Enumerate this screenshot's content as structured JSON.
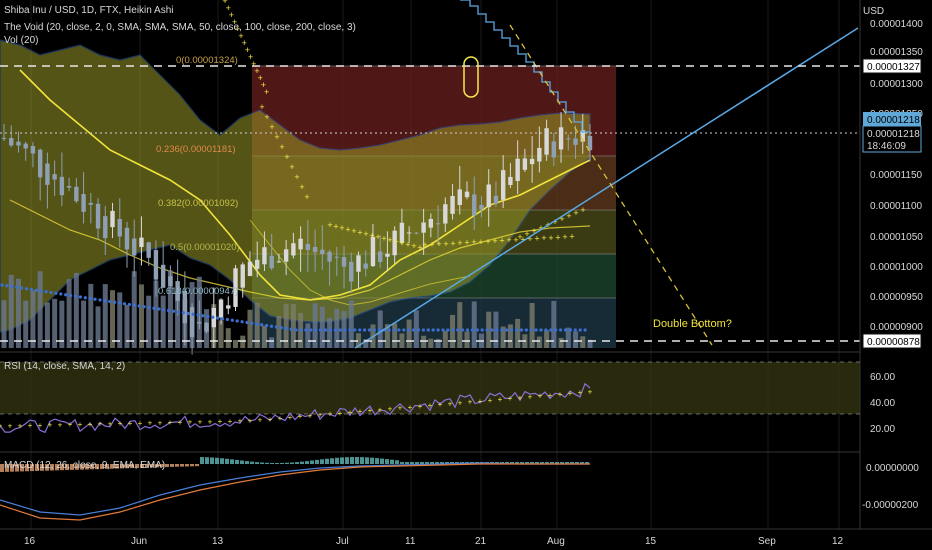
{
  "header": {
    "symbol_line": "Shiba Inu / USD, 1D, FTX, Heikin Ashi",
    "indicator_line": "The Void (20, close, 2, 0, SMA, SMA, SMA, 50, close, 100, close, 200, close, 3)",
    "volume_line": "Vol (20)"
  },
  "colors": {
    "background": "#000000",
    "candle_up": "#d8d8d8",
    "candle_down": "#8fa0b5",
    "band_fill": "#9a9a28",
    "band_edge": "#2f5fa8",
    "sma_line": "#f2e33a",
    "dotted_sar": "#f6e84a",
    "trendline": "#5aa9e6",
    "dashed_down": "#d6c13a",
    "fib_red": "#6b1f1f",
    "fib_orange": "#6b3e1f",
    "fib_olive": "#4d4f1a",
    "fib_green": "#1f4a32",
    "fib_teal": "#1f3a4a",
    "rsi_line": "#8b6fd6",
    "macd_line": "#4a7fd8",
    "signal_line": "#e07a3a",
    "hist_pos": "#5fb8b8",
    "hist_neg": "#e0a070",
    "current_price_tag": "#5fa8d8"
  },
  "price_axis": {
    "currency": "USD",
    "ticks": [
      "0.00001400",
      "0.00001350",
      "0.00001300",
      "0.00001250",
      "0.00001200",
      "0.00001150",
      "0.00001100",
      "0.00001050",
      "0.00001000",
      "0.00000950",
      "0.00000900"
    ],
    "highlight_high": "0.00001327",
    "current_price_a": "0.00001218",
    "current_price_b": "0.00001218",
    "countdown": "18:46:09",
    "highlight_low": "0.00000878"
  },
  "fib_labels": {
    "level_0": "0(0.00001324)",
    "level_236": "0.236(0.00001181)",
    "level_382": "0.382(0.00001092)",
    "level_5": "0.5(0.00001020)",
    "level_618": "0.618(0.00000947)"
  },
  "annotation": {
    "double_bottom": "Double Bottom?"
  },
  "rsi": {
    "label": "RSI (14, close, SMA, 14, 2)",
    "ticks": [
      "60.00",
      "40.00",
      "20.00"
    ]
  },
  "macd": {
    "label": "MACD (12, 26, close, 9, EMA, EMA)",
    "ticks": [
      "0.00000000",
      "-0.00000200"
    ]
  },
  "time_axis": {
    "labels": [
      "16",
      "Jun",
      "13",
      "Jul",
      "11",
      "21",
      "Aug",
      "15",
      "Sep",
      "12"
    ]
  },
  "chart_data": {
    "type": "line",
    "title": "Shiba Inu / USD, 1D, FTX, Heikin Ashi",
    "price_range": [
      8.7e-06,
      1.42e-05
    ],
    "close_series": [
      [
        "2022-05-16",
        1.21e-05
      ],
      [
        "2022-05-23",
        1.15e-05
      ],
      [
        "2022-05-30",
        1.08e-05
      ],
      [
        "2022-06-06",
        1.01e-05
      ],
      [
        "2022-06-13",
        9e-06
      ],
      [
        "2022-06-20",
        1.01e-05
      ],
      [
        "2022-06-27",
        1.04e-05
      ],
      [
        "2022-07-04",
        1e-05
      ],
      [
        "2022-07-11",
        1.04e-05
      ],
      [
        "2022-07-18",
        1.1e-05
      ],
      [
        "2022-07-25",
        1.11e-05
      ],
      [
        "2022-08-01",
        1.2e-05
      ],
      [
        "2022-08-06",
        1.22e-05
      ]
    ],
    "fibonacci": {
      "0": 1.324e-05,
      "0.236": 1.181e-05,
      "0.382": 1.092e-05,
      "0.5": 1.02e-05,
      "0.618": 9.47e-06
    },
    "rsi_range": [
      20,
      65
    ],
    "rsi_last": 58
  }
}
